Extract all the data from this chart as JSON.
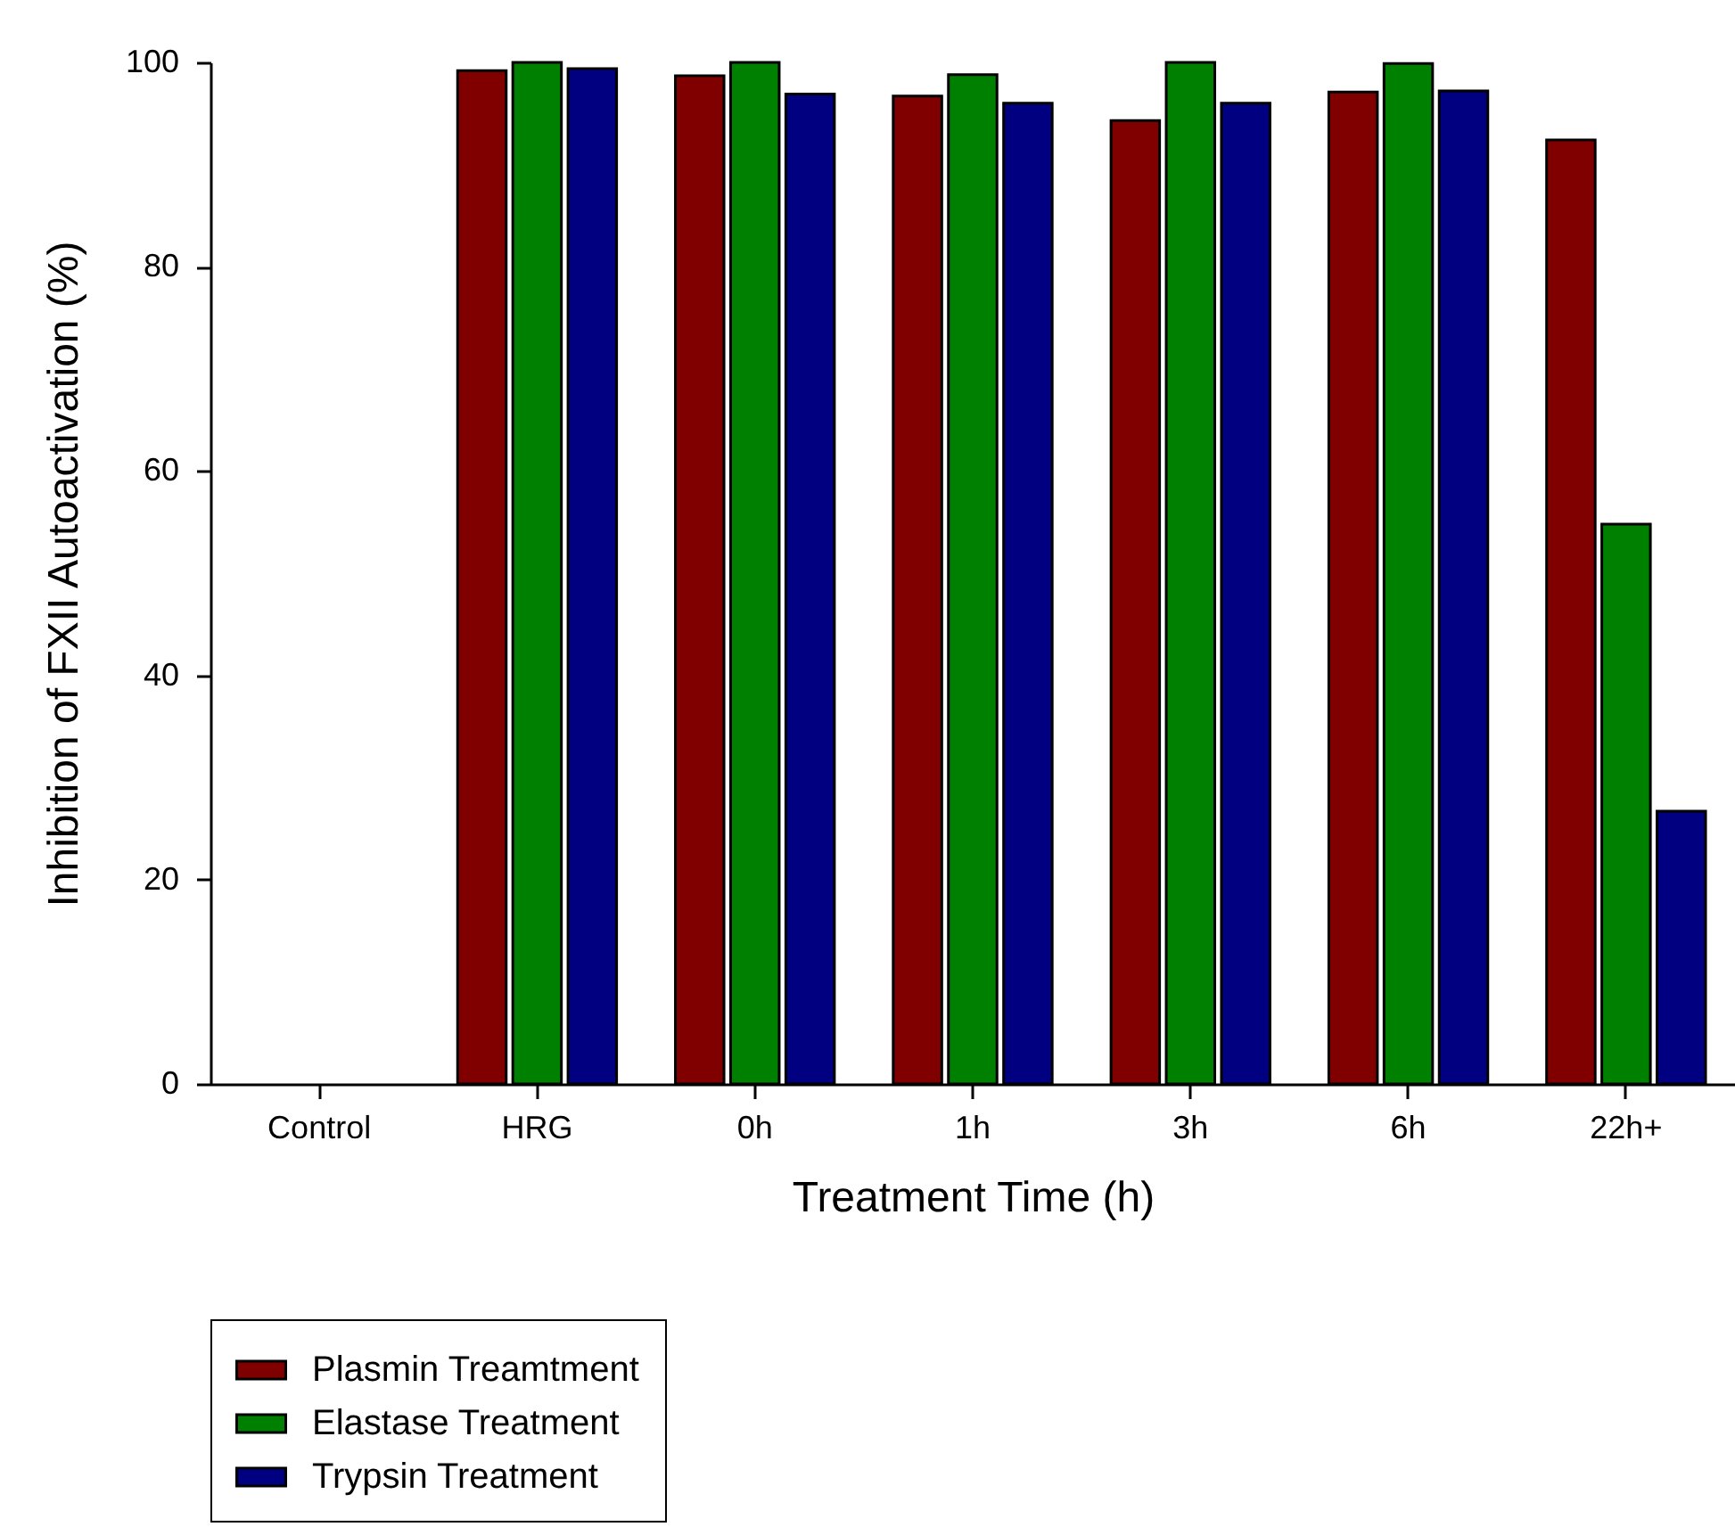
{
  "chart_data": {
    "type": "bar",
    "xlabel": "Treatment Time (h)",
    "ylabel": "Inhibition of FXII Autoactivation (%)",
    "categories": [
      "Control",
      "HRG",
      "0h",
      "1h",
      "3h",
      "6h",
      "22h+"
    ],
    "ylim": [
      0,
      100
    ],
    "yticks": [
      0,
      20,
      40,
      60,
      80,
      100
    ],
    "grid": false,
    "legend": "bottom left",
    "series": [
      {
        "name": "Plasmin Treamtment",
        "color": "#800000",
        "values": [
          null,
          99.2,
          98.7,
          96.7,
          94.3,
          97.1,
          92.4
        ]
      },
      {
        "name": "Elastase Treatment",
        "color": "#008000",
        "values": [
          null,
          100,
          100,
          98.8,
          100,
          99.9,
          54.8
        ]
      },
      {
        "name": "Trypsin Treatment",
        "color": "#000080",
        "values": [
          null,
          99.4,
          96.9,
          96.0,
          96.0,
          97.2,
          26.7
        ]
      }
    ]
  }
}
